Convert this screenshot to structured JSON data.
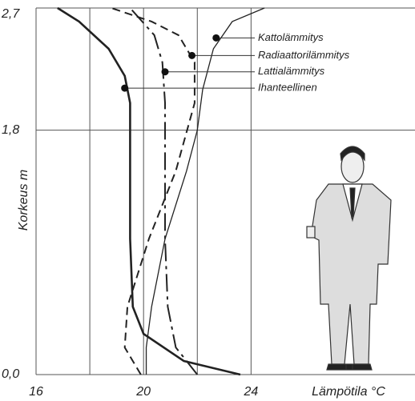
{
  "chart_data": {
    "type": "line",
    "xlabel": "Lämpötila °C",
    "ylabel": "Korkeus m",
    "xlim": [
      16,
      30.1
    ],
    "ylim": [
      0,
      2.7
    ],
    "xticks": [
      16,
      {
        "value": 18,
        "label": null
      },
      20,
      {
        "value": 22,
        "label": null
      },
      24
    ],
    "yticks": [
      {
        "value": 0,
        "label": "0,0"
      },
      {
        "value": 1.8,
        "label": "1,8"
      },
      {
        "value": 2.7,
        "label": "2,7"
      }
    ],
    "series": [
      {
        "name": "Kattolämmitys",
        "color": "#222",
        "style": "solid",
        "width": 1.3,
        "y": [
          0,
          0.2,
          0.5,
          1.0,
          1.5,
          1.8,
          2.1,
          2.4,
          2.6,
          2.7
        ],
        "x": [
          20.1,
          20.1,
          20.3,
          20.8,
          21.6,
          22.0,
          22.2,
          22.6,
          23.3,
          24.5
        ],
        "marker_x": 22.7,
        "marker_y": 2.48
      },
      {
        "name": "Radiaattorilämmitys",
        "color": "#222",
        "style": "dashed",
        "width": 2,
        "y": [
          0,
          0.2,
          0.5,
          1.0,
          1.5,
          2.0,
          2.3,
          2.5,
          2.6,
          2.7
        ],
        "x": [
          19.9,
          19.3,
          19.4,
          20.2,
          21.2,
          21.9,
          21.9,
          21.3,
          20.3,
          18.8
        ],
        "marker_x": 21.8,
        "marker_y": 2.35
      },
      {
        "name": "Lattialämmitys",
        "color": "#222",
        "style": "dashdot",
        "width": 2,
        "y": [
          0,
          0.2,
          0.5,
          1.0,
          1.5,
          2.0,
          2.3,
          2.5,
          2.7
        ],
        "x": [
          22.0,
          21.2,
          20.9,
          20.8,
          20.8,
          20.8,
          20.7,
          20.4,
          19.5
        ],
        "marker_x": 20.8,
        "marker_y": 2.23
      },
      {
        "name": "Ihanteellinen",
        "color": "#222",
        "style": "solid",
        "width": 2.6,
        "y": [
          0,
          0.1,
          0.3,
          0.5,
          1.0,
          1.5,
          2.0,
          2.2,
          2.4,
          2.6,
          2.7
        ],
        "x": [
          23.6,
          21.5,
          20.0,
          19.6,
          19.5,
          19.5,
          19.5,
          19.3,
          18.7,
          17.6,
          16.8
        ],
        "marker_x": 19.3,
        "marker_y": 2.11
      }
    ]
  }
}
